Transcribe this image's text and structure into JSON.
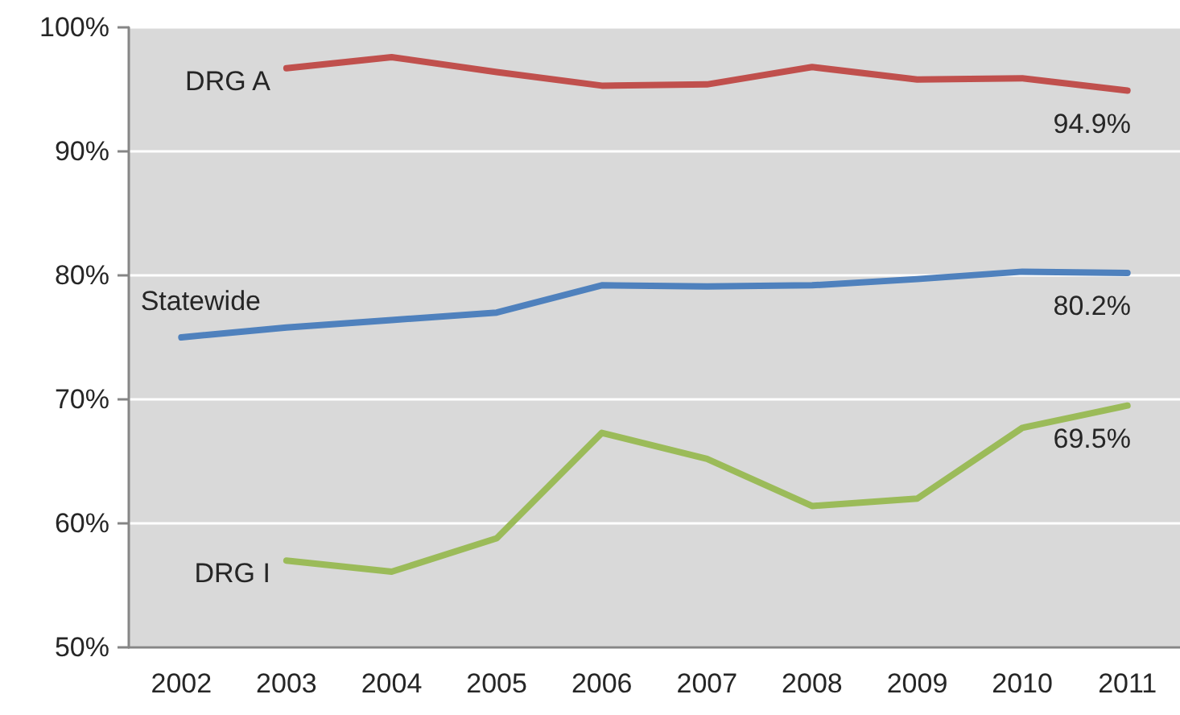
{
  "chart_data": {
    "type": "line",
    "categories": [
      "2002",
      "2003",
      "2004",
      "2005",
      "2006",
      "2007",
      "2008",
      "2009",
      "2010",
      "2011"
    ],
    "ylim": [
      50,
      100
    ],
    "yticks": [
      {
        "value": 50,
        "label": "50%"
      },
      {
        "value": 60,
        "label": "60%"
      },
      {
        "value": 70,
        "label": "70%"
      },
      {
        "value": 80,
        "label": "80%"
      },
      {
        "value": 90,
        "label": "90%"
      },
      {
        "value": 100,
        "label": "100%"
      }
    ],
    "grid": "y",
    "series": [
      {
        "name": "DRG A",
        "color": "#c0504d",
        "values": [
          null,
          96.7,
          97.6,
          96.4,
          95.3,
          95.4,
          96.8,
          95.8,
          95.9,
          94.9
        ],
        "value_labels": [
          null,
          null,
          null,
          null,
          null,
          null,
          null,
          null,
          null,
          "94.9%"
        ]
      },
      {
        "name": "Statewide",
        "color": "#4f81bd",
        "values": [
          75.0,
          75.8,
          76.4,
          77.0,
          79.2,
          79.1,
          79.2,
          79.7,
          80.3,
          80.2
        ],
        "value_labels": [
          null,
          null,
          null,
          null,
          null,
          null,
          null,
          null,
          null,
          "80.2%"
        ]
      },
      {
        "name": "DRG I",
        "color": "#9bbb59",
        "values": [
          null,
          57.0,
          56.1,
          58.8,
          67.3,
          65.2,
          61.4,
          62.0,
          67.7,
          69.5
        ],
        "value_labels": [
          null,
          null,
          null,
          null,
          null,
          null,
          null,
          null,
          null,
          "69.5%"
        ]
      }
    ]
  }
}
